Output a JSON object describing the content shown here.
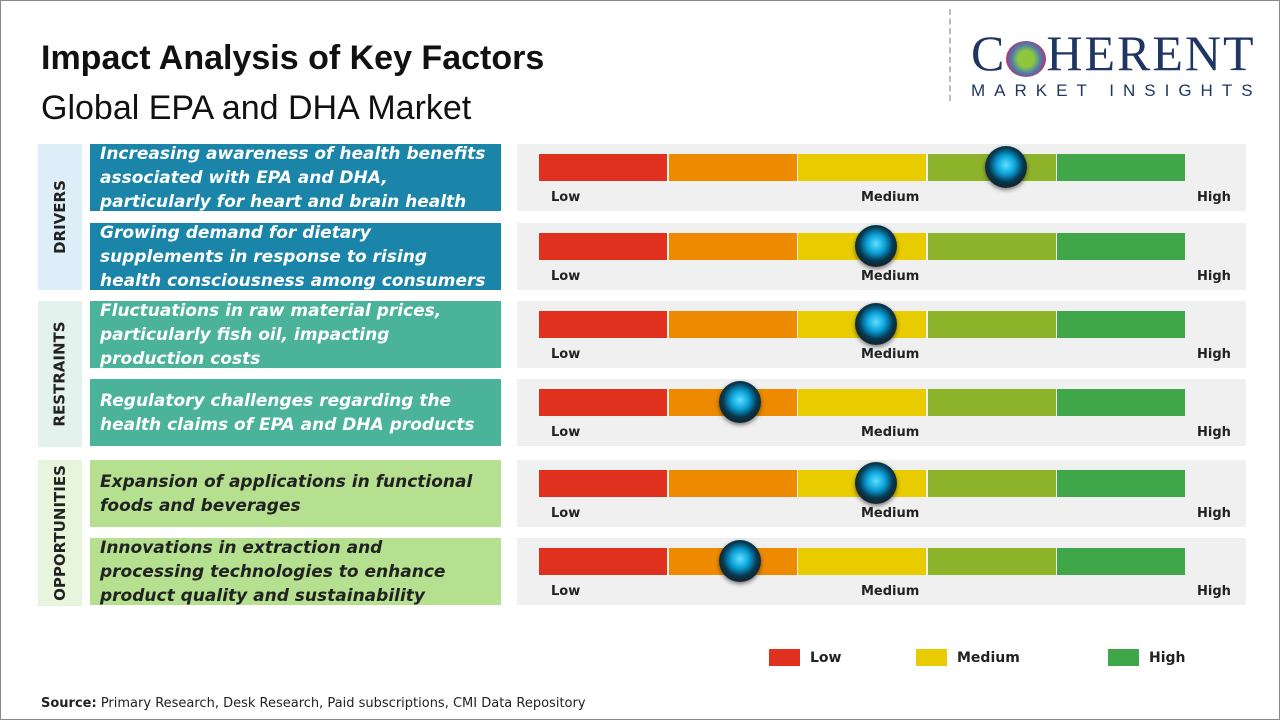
{
  "header": {
    "title": "Impact Analysis of Key Factors",
    "subtitle": "Global EPA and DHA Market"
  },
  "logo": {
    "line1_a": "C",
    "line1_b": "HERENT",
    "line2": "MARKET INSIGHTS"
  },
  "scale": {
    "low": "Low",
    "medium": "Medium",
    "high": "High"
  },
  "colors": {
    "seg": [
      "#e0301e",
      "#ee8a00",
      "#e8cc00",
      "#8db32a",
      "#3fa64a"
    ]
  },
  "categories": [
    {
      "label": "DRIVERS",
      "bg": "#ddeef8",
      "factor_bg": "#1a85a8",
      "factor_color": "#ffffff"
    },
    {
      "label": "RESTRAINTS",
      "bg": "#e4f2ee",
      "factor_bg": "#4bb39a",
      "factor_color": "#ffffff"
    },
    {
      "label": "OPPORTUNITIES",
      "bg": "#e7f5dc",
      "factor_bg": "#b5e08f",
      "factor_color": "#222222"
    }
  ],
  "factors": [
    {
      "category": 0,
      "text": "Increasing awareness of health benefits associated with EPA and DHA, particularly for heart and brain health",
      "impact": 0.72
    },
    {
      "category": 0,
      "text": "Growing demand for dietary supplements in response to rising health consciousness among consumers",
      "impact": 0.52
    },
    {
      "category": 1,
      "text": "Fluctuations in raw material prices, particularly fish oil, impacting production costs",
      "impact": 0.52
    },
    {
      "category": 1,
      "text": "Regulatory challenges regarding the health claims of EPA and DHA products",
      "impact": 0.31
    },
    {
      "category": 2,
      "text": "Expansion of applications in functional foods and beverages",
      "impact": 0.52
    },
    {
      "category": 2,
      "text": "Innovations in extraction and processing technologies to enhance product quality and sustainability",
      "impact": 0.31
    }
  ],
  "legend": [
    {
      "label": "Low",
      "color": "#e0301e"
    },
    {
      "label": "Medium",
      "color": "#e8cc00"
    },
    {
      "label": "High",
      "color": "#3fa64a"
    }
  ],
  "source": {
    "label": "Source:",
    "text": " Primary Research, Desk Research, Paid subscriptions, CMI Data Repository"
  }
}
